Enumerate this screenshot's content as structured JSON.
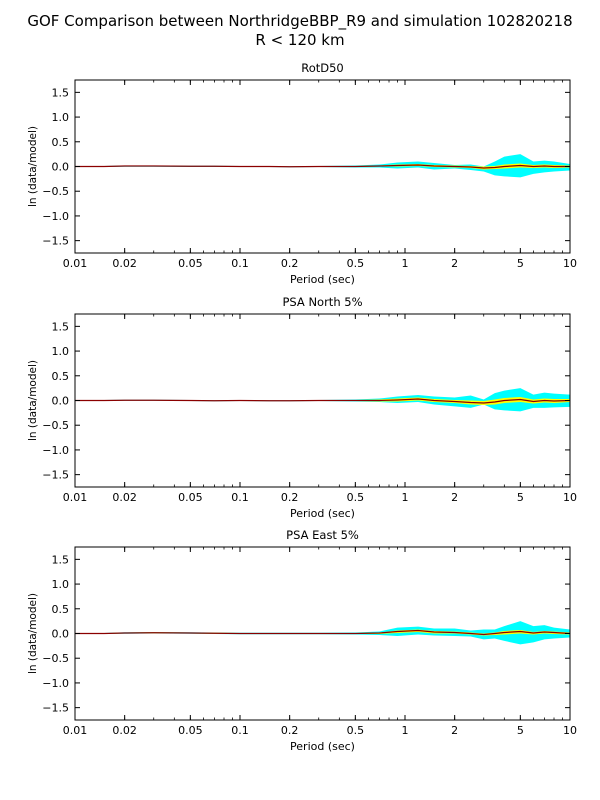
{
  "figure": {
    "title_line1": "GOF Comparison between NorthridgeBBP_R9 and simulation 102820218",
    "title_line2": "R < 120 km"
  },
  "colors": {
    "band_outer": "#00ffff",
    "band_inner": "#ffff00",
    "mean_line": "#8b0000",
    "axis": "#000000"
  },
  "chart_data": [
    {
      "type": "area",
      "title": "RotD50",
      "xlabel": "Period (sec)",
      "ylabel": "ln (data/model)",
      "xscale": "log",
      "xlim": [
        0.01,
        10
      ],
      "ylim": [
        -1.75,
        1.75
      ],
      "xticks": [
        0.01,
        0.02,
        0.05,
        0.1,
        0.2,
        0.5,
        1,
        2,
        5,
        10
      ],
      "xtick_labels": [
        "0.01",
        "0.02",
        "0.05",
        "0.1",
        "0.2",
        "0.5",
        "1",
        "2",
        "5",
        "10"
      ],
      "yticks": [
        -1.5,
        -1.0,
        -0.5,
        0.0,
        0.5,
        1.0,
        1.5
      ],
      "ytick_labels": [
        "−1.5",
        "−1.0",
        "−0.5",
        "0.0",
        "0.5",
        "1.0",
        "1.5"
      ],
      "x": [
        0.01,
        0.015,
        0.02,
        0.03,
        0.05,
        0.07,
        0.1,
        0.15,
        0.2,
        0.3,
        0.5,
        0.7,
        0.9,
        1.2,
        1.5,
        2.0,
        2.5,
        3.0,
        3.5,
        4.0,
        5.0,
        6.0,
        7.0,
        8.0,
        10.0
      ],
      "mean": [
        0.0,
        0.0,
        0.01,
        0.01,
        0.005,
        0.005,
        0.0,
        0.0,
        -0.005,
        0.0,
        0.0,
        0.01,
        0.02,
        0.03,
        0.01,
        0.0,
        -0.01,
        -0.03,
        -0.02,
        0.0,
        0.02,
        0.0,
        0.01,
        0.0,
        0.0
      ],
      "inner_upper": [
        0.005,
        0.005,
        0.015,
        0.015,
        0.01,
        0.01,
        0.005,
        0.005,
        0.0,
        0.005,
        0.01,
        0.02,
        0.04,
        0.05,
        0.03,
        0.02,
        0.01,
        0.0,
        0.01,
        0.04,
        0.06,
        0.03,
        0.04,
        0.03,
        0.02
      ],
      "inner_lower": [
        -0.005,
        -0.005,
        0.005,
        0.005,
        0.0,
        0.0,
        -0.005,
        -0.005,
        -0.01,
        -0.005,
        -0.01,
        0.0,
        0.0,
        0.01,
        -0.01,
        -0.02,
        -0.03,
        -0.06,
        -0.05,
        -0.04,
        -0.02,
        -0.03,
        -0.02,
        -0.03,
        -0.02
      ],
      "outer_upper": [
        0.01,
        0.01,
        0.02,
        0.02,
        0.015,
        0.015,
        0.01,
        0.01,
        0.005,
        0.01,
        0.02,
        0.04,
        0.08,
        0.1,
        0.07,
        0.03,
        0.04,
        0.0,
        0.1,
        0.2,
        0.25,
        0.1,
        0.12,
        0.1,
        0.05
      ],
      "outer_lower": [
        -0.01,
        -0.01,
        -0.005,
        -0.005,
        -0.01,
        -0.01,
        -0.01,
        -0.01,
        -0.015,
        -0.01,
        -0.02,
        -0.02,
        -0.04,
        -0.02,
        -0.06,
        -0.04,
        -0.07,
        -0.1,
        -0.18,
        -0.2,
        -0.22,
        -0.15,
        -0.12,
        -0.1,
        -0.08
      ]
    },
    {
      "type": "area",
      "title": "PSA North 5%",
      "xlabel": "Period (sec)",
      "ylabel": "ln (data/model)",
      "xscale": "log",
      "xlim": [
        0.01,
        10
      ],
      "ylim": [
        -1.75,
        1.75
      ],
      "xticks": [
        0.01,
        0.02,
        0.05,
        0.1,
        0.2,
        0.5,
        1,
        2,
        5,
        10
      ],
      "xtick_labels": [
        "0.01",
        "0.02",
        "0.05",
        "0.1",
        "0.2",
        "0.5",
        "1",
        "2",
        "5",
        "10"
      ],
      "yticks": [
        -1.5,
        -1.0,
        -0.5,
        0.0,
        0.5,
        1.0,
        1.5
      ],
      "ytick_labels": [
        "−1.5",
        "−1.0",
        "−0.5",
        "0.0",
        "0.5",
        "1.0",
        "1.5"
      ],
      "x": [
        0.01,
        0.015,
        0.02,
        0.03,
        0.05,
        0.07,
        0.1,
        0.15,
        0.2,
        0.3,
        0.5,
        0.7,
        0.9,
        1.2,
        1.5,
        2.0,
        2.5,
        3.0,
        3.5,
        4.0,
        5.0,
        6.0,
        7.0,
        8.0,
        10.0
      ],
      "mean": [
        0.0,
        0.0,
        0.005,
        0.005,
        0.0,
        -0.005,
        0.0,
        -0.005,
        -0.005,
        0.0,
        0.0,
        0.0,
        0.01,
        0.03,
        0.0,
        -0.02,
        -0.04,
        -0.05,
        -0.03,
        0.0,
        0.02,
        -0.02,
        0.0,
        -0.01,
        0.0
      ],
      "inner_upper": [
        0.005,
        0.005,
        0.01,
        0.01,
        0.005,
        0.0,
        0.005,
        0.0,
        0.0,
        0.005,
        0.01,
        0.02,
        0.04,
        0.06,
        0.03,
        0.01,
        0.0,
        -0.01,
        0.02,
        0.05,
        0.07,
        0.02,
        0.04,
        0.03,
        0.03
      ],
      "inner_lower": [
        -0.005,
        -0.005,
        0.0,
        0.0,
        -0.005,
        -0.01,
        -0.005,
        -0.01,
        -0.01,
        -0.005,
        -0.01,
        -0.02,
        -0.02,
        0.0,
        -0.03,
        -0.05,
        -0.08,
        -0.09,
        -0.08,
        -0.05,
        -0.03,
        -0.06,
        -0.04,
        -0.05,
        -0.03
      ],
      "outer_upper": [
        0.01,
        0.01,
        0.015,
        0.015,
        0.01,
        0.005,
        0.01,
        0.005,
        0.005,
        0.01,
        0.02,
        0.04,
        0.08,
        0.11,
        0.08,
        0.06,
        0.1,
        0.02,
        0.15,
        0.2,
        0.25,
        0.12,
        0.16,
        0.14,
        0.12
      ],
      "outer_lower": [
        -0.01,
        -0.01,
        -0.005,
        -0.005,
        -0.01,
        -0.015,
        -0.01,
        -0.015,
        -0.015,
        -0.01,
        -0.02,
        -0.03,
        -0.05,
        -0.03,
        -0.08,
        -0.12,
        -0.15,
        -0.08,
        -0.18,
        -0.2,
        -0.22,
        -0.15,
        -0.15,
        -0.14,
        -0.13
      ]
    },
    {
      "type": "area",
      "title": "PSA East 5%",
      "xlabel": "Period (sec)",
      "ylabel": "ln (data/model)",
      "xscale": "log",
      "xlim": [
        0.01,
        10
      ],
      "ylim": [
        -1.75,
        1.75
      ],
      "xticks": [
        0.01,
        0.02,
        0.05,
        0.1,
        0.2,
        0.5,
        1,
        2,
        5,
        10
      ],
      "xtick_labels": [
        "0.01",
        "0.02",
        "0.05",
        "0.1",
        "0.2",
        "0.5",
        "1",
        "2",
        "5",
        "10"
      ],
      "yticks": [
        -1.5,
        -1.0,
        -0.5,
        0.0,
        0.5,
        1.0,
        1.5
      ],
      "ytick_labels": [
        "−1.5",
        "−1.0",
        "−0.5",
        "0.0",
        "0.5",
        "1.0",
        "1.5"
      ],
      "x": [
        0.01,
        0.015,
        0.02,
        0.03,
        0.05,
        0.07,
        0.1,
        0.15,
        0.2,
        0.3,
        0.5,
        0.7,
        0.9,
        1.2,
        1.5,
        2.0,
        2.5,
        3.0,
        3.5,
        4.0,
        5.0,
        6.0,
        7.0,
        8.0,
        10.0
      ],
      "mean": [
        0.0,
        0.0,
        0.01,
        0.015,
        0.01,
        0.005,
        0.0,
        0.0,
        0.0,
        0.0,
        0.0,
        0.01,
        0.04,
        0.06,
        0.03,
        0.02,
        0.0,
        -0.02,
        0.0,
        0.02,
        0.04,
        0.01,
        0.03,
        0.02,
        0.0
      ],
      "inner_upper": [
        0.005,
        0.005,
        0.02,
        0.025,
        0.02,
        0.015,
        0.01,
        0.01,
        0.01,
        0.01,
        0.01,
        0.02,
        0.06,
        0.08,
        0.05,
        0.04,
        0.02,
        0.0,
        0.02,
        0.05,
        0.07,
        0.03,
        0.05,
        0.04,
        0.02
      ],
      "inner_lower": [
        -0.005,
        -0.005,
        0.0,
        0.005,
        0.0,
        -0.005,
        -0.01,
        -0.01,
        -0.01,
        -0.01,
        -0.01,
        -0.01,
        0.01,
        0.03,
        0.0,
        0.0,
        -0.02,
        -0.04,
        -0.03,
        -0.02,
        0.0,
        -0.02,
        0.0,
        -0.01,
        -0.02
      ],
      "outer_upper": [
        0.01,
        0.01,
        0.025,
        0.03,
        0.025,
        0.02,
        0.015,
        0.015,
        0.015,
        0.015,
        0.02,
        0.04,
        0.12,
        0.14,
        0.1,
        0.1,
        0.06,
        0.08,
        0.08,
        0.15,
        0.25,
        0.15,
        0.17,
        0.12,
        0.08
      ],
      "outer_lower": [
        -0.01,
        -0.01,
        -0.005,
        0.0,
        -0.005,
        -0.01,
        -0.015,
        -0.015,
        -0.015,
        -0.015,
        -0.02,
        -0.03,
        -0.05,
        -0.02,
        -0.04,
        -0.05,
        -0.06,
        -0.12,
        -0.1,
        -0.15,
        -0.22,
        -0.18,
        -0.12,
        -0.1,
        -0.08
      ]
    }
  ]
}
